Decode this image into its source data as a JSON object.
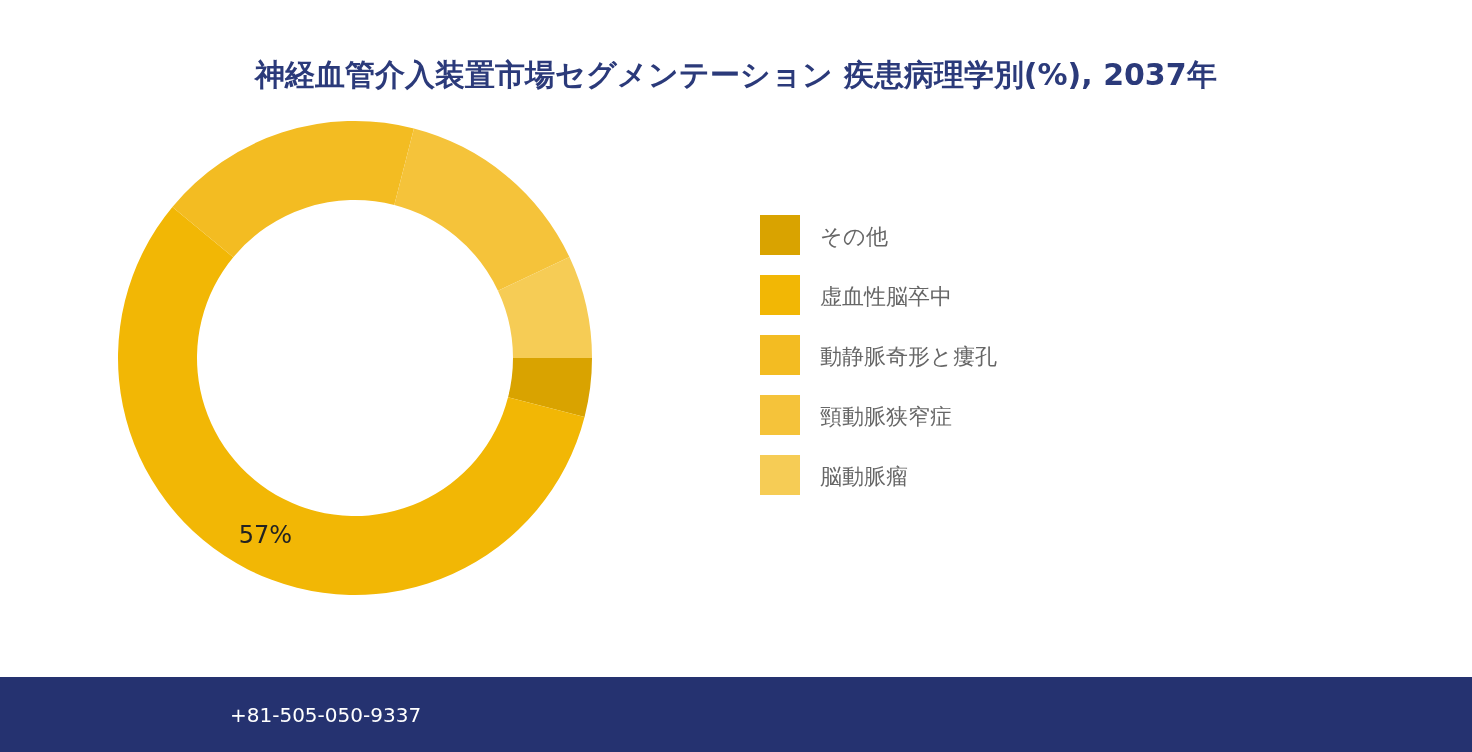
{
  "chart_data": {
    "type": "donut",
    "title": "神経血管介入装置市場セグメンテーション 疾患病理学別(%), 2037年",
    "categories": [
      "その他",
      "虚血性脳卒中",
      "動静脈奇形と瘻孔",
      "頸動脈狭窄症",
      "脳動脈瘤"
    ],
    "values": [
      4,
      57,
      18,
      14,
      7
    ],
    "colors": [
      "#d9a300",
      "#f2b705",
      "#f3bc22",
      "#f5c33a",
      "#f6cc55"
    ],
    "value_labels": [
      null,
      "57%",
      null,
      null,
      null
    ],
    "legend": "right",
    "annotations": [
      "+81-505-050-9337"
    ]
  }
}
